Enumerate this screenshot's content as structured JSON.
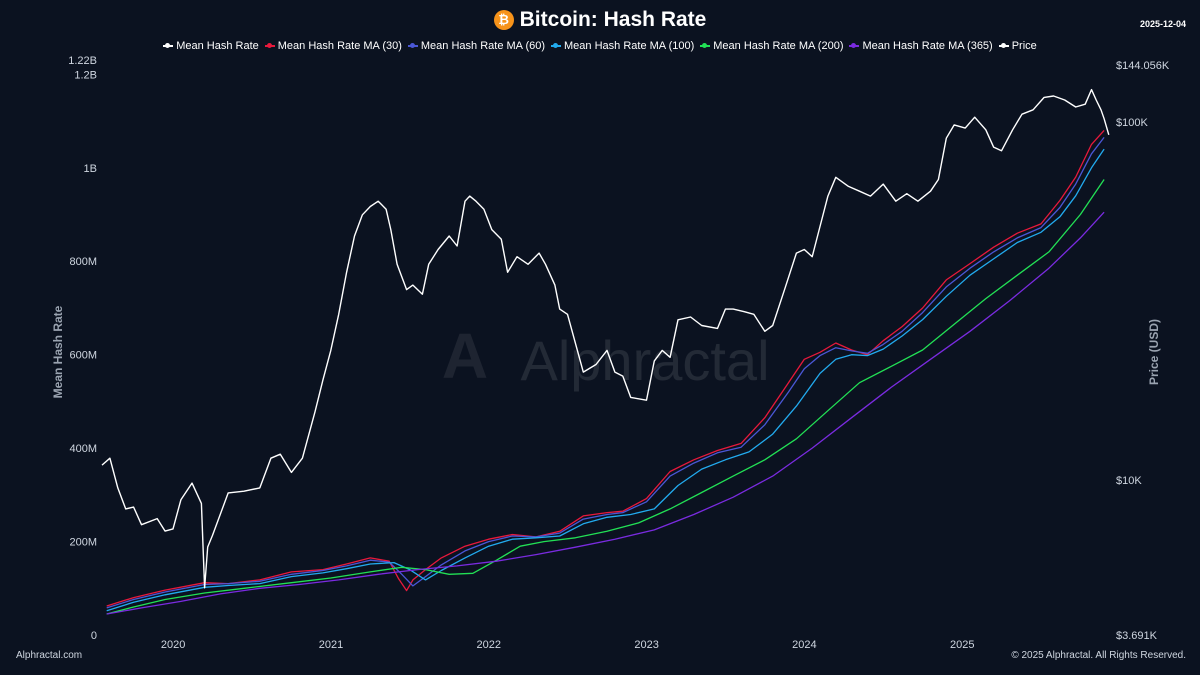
{
  "header": {
    "title": "Bitcoin: Hash Rate",
    "date": "2025-12-04",
    "icon": "bitcoin-icon",
    "icon_glyph": "₿"
  },
  "footer": {
    "left": "Alphractal.com",
    "right": "© 2025 Alphractal. All Rights Reserved."
  },
  "watermark": "Alphractal",
  "chart_data": {
    "type": "line",
    "title": "Bitcoin: Hash Rate",
    "ylabel": "Mean Hash Rate",
    "y2label": "Price (USD)",
    "xlim": [
      2019.55,
      2025.95
    ],
    "ylim": [
      0,
      1220000000
    ],
    "y2lim_log": [
      3691,
      144056
    ],
    "x_ticks": [
      2020,
      2021,
      2022,
      2023,
      2024,
      2025
    ],
    "x_tick_labels": [
      "2020",
      "2021",
      "2022",
      "2023",
      "2024",
      "2025"
    ],
    "y_ticks": [
      {
        "value": 0,
        "label": "0"
      },
      {
        "value": 200000000,
        "label": "200M"
      },
      {
        "value": 400000000,
        "label": "400M"
      },
      {
        "value": 600000000,
        "label": "600M"
      },
      {
        "value": 800000000,
        "label": "800M"
      },
      {
        "value": 1000000000,
        "label": "1B"
      },
      {
        "value": 1200000000,
        "label": "1.2B"
      },
      {
        "value": 1220000000,
        "label": "1.22B"
      }
    ],
    "y2_ticks": [
      {
        "value": 3691,
        "label": "$3.691K"
      },
      {
        "value": 10000,
        "label": "$10K"
      },
      {
        "value": 100000,
        "label": "$100K"
      },
      {
        "value": 144056,
        "label": "$144.056K"
      }
    ],
    "series": [
      {
        "name": "Mean Hash Rate",
        "color": "#ffffff",
        "axis": "left",
        "show_line": false,
        "x": [],
        "values": []
      },
      {
        "name": "Mean Hash Rate MA (30)",
        "color": "#e8193c",
        "axis": "left",
        "x": [
          2019.58,
          2019.75,
          2019.95,
          2020.2,
          2020.35,
          2020.55,
          2020.75,
          2020.95,
          2021.1,
          2021.25,
          2021.37,
          2021.43,
          2021.48,
          2021.52,
          2021.6,
          2021.7,
          2021.85,
          2022.0,
          2022.15,
          2022.3,
          2022.45,
          2022.6,
          2022.75,
          2022.85,
          2023.0,
          2023.15,
          2023.3,
          2023.45,
          2023.6,
          2023.75,
          2023.9,
          2024.0,
          2024.1,
          2024.2,
          2024.3,
          2024.4,
          2024.5,
          2024.62,
          2024.75,
          2024.9,
          2025.05,
          2025.2,
          2025.35,
          2025.5,
          2025.62,
          2025.72,
          2025.82,
          2025.9
        ],
        "values": [
          62000000,
          80000000,
          96000000,
          112000000,
          110000000,
          118000000,
          135000000,
          140000000,
          152000000,
          165000000,
          158000000,
          120000000,
          95000000,
          118000000,
          140000000,
          165000000,
          190000000,
          205000000,
          215000000,
          210000000,
          222000000,
          255000000,
          262000000,
          265000000,
          292000000,
          350000000,
          375000000,
          395000000,
          410000000,
          465000000,
          540000000,
          590000000,
          605000000,
          625000000,
          610000000,
          600000000,
          630000000,
          660000000,
          700000000,
          760000000,
          795000000,
          830000000,
          860000000,
          880000000,
          930000000,
          980000000,
          1050000000,
          1080000000
        ]
      },
      {
        "name": "Mean Hash Rate MA (60)",
        "color": "#4a57d6",
        "axis": "left",
        "x": [
          2019.58,
          2019.75,
          2019.95,
          2020.2,
          2020.35,
          2020.55,
          2020.75,
          2020.95,
          2021.1,
          2021.25,
          2021.37,
          2021.45,
          2021.52,
          2021.6,
          2021.7,
          2021.85,
          2022.0,
          2022.15,
          2022.3,
          2022.45,
          2022.6,
          2022.75,
          2022.85,
          2023.0,
          2023.15,
          2023.3,
          2023.45,
          2023.6,
          2023.75,
          2023.9,
          2024.0,
          2024.1,
          2024.2,
          2024.3,
          2024.4,
          2024.5,
          2024.62,
          2024.75,
          2024.9,
          2025.05,
          2025.2,
          2025.35,
          2025.5,
          2025.62,
          2025.72,
          2025.82,
          2025.9
        ],
        "values": [
          58000000,
          76000000,
          92000000,
          108000000,
          110000000,
          115000000,
          130000000,
          138000000,
          148000000,
          160000000,
          156000000,
          130000000,
          105000000,
          125000000,
          150000000,
          180000000,
          200000000,
          212000000,
          210000000,
          218000000,
          248000000,
          258000000,
          262000000,
          285000000,
          340000000,
          368000000,
          390000000,
          402000000,
          450000000,
          520000000,
          570000000,
          598000000,
          615000000,
          608000000,
          603000000,
          622000000,
          650000000,
          690000000,
          745000000,
          785000000,
          820000000,
          850000000,
          872000000,
          915000000,
          965000000,
          1030000000,
          1065000000
        ]
      },
      {
        "name": "Mean Hash Rate MA (100)",
        "color": "#22aaee",
        "axis": "left",
        "x": [
          2019.58,
          2019.75,
          2019.95,
          2020.2,
          2020.35,
          2020.55,
          2020.75,
          2020.95,
          2021.1,
          2021.25,
          2021.4,
          2021.5,
          2021.6,
          2021.7,
          2021.85,
          2022.0,
          2022.15,
          2022.3,
          2022.45,
          2022.6,
          2022.75,
          2022.9,
          2023.05,
          2023.2,
          2023.35,
          2023.5,
          2023.65,
          2023.8,
          2023.95,
          2024.1,
          2024.2,
          2024.3,
          2024.4,
          2024.5,
          2024.62,
          2024.75,
          2024.9,
          2025.05,
          2025.2,
          2025.35,
          2025.5,
          2025.62,
          2025.72,
          2025.82,
          2025.9
        ],
        "values": [
          52000000,
          70000000,
          86000000,
          102000000,
          106000000,
          110000000,
          125000000,
          133000000,
          142000000,
          152000000,
          155000000,
          140000000,
          118000000,
          138000000,
          165000000,
          190000000,
          205000000,
          208000000,
          212000000,
          238000000,
          252000000,
          258000000,
          270000000,
          320000000,
          355000000,
          375000000,
          392000000,
          430000000,
          490000000,
          560000000,
          590000000,
          600000000,
          598000000,
          612000000,
          640000000,
          675000000,
          725000000,
          770000000,
          805000000,
          840000000,
          862000000,
          895000000,
          940000000,
          1000000000,
          1040000000
        ]
      },
      {
        "name": "Mean Hash Rate MA (200)",
        "color": "#22e055",
        "axis": "left",
        "x": [
          2019.58,
          2019.75,
          2019.95,
          2020.2,
          2020.45,
          2020.75,
          2021.0,
          2021.25,
          2021.45,
          2021.6,
          2021.75,
          2021.9,
          2022.05,
          2022.2,
          2022.35,
          2022.55,
          2022.75,
          2022.95,
          2023.15,
          2023.35,
          2023.55,
          2023.75,
          2023.95,
          2024.15,
          2024.35,
          2024.55,
          2024.75,
          2024.95,
          2025.15,
          2025.35,
          2025.55,
          2025.75,
          2025.9
        ],
        "values": [
          45000000,
          60000000,
          76000000,
          90000000,
          100000000,
          112000000,
          122000000,
          135000000,
          145000000,
          140000000,
          130000000,
          132000000,
          160000000,
          190000000,
          200000000,
          208000000,
          222000000,
          240000000,
          270000000,
          305000000,
          340000000,
          375000000,
          420000000,
          480000000,
          540000000,
          575000000,
          610000000,
          665000000,
          720000000,
          770000000,
          820000000,
          900000000,
          975000000
        ]
      },
      {
        "name": "Mean Hash Rate MA (365)",
        "color": "#7a2be0",
        "axis": "left",
        "x": [
          2019.58,
          2019.8,
          2020.05,
          2020.3,
          2020.55,
          2020.8,
          2021.05,
          2021.3,
          2021.55,
          2021.8,
          2022.05,
          2022.3,
          2022.55,
          2022.8,
          2023.05,
          2023.3,
          2023.55,
          2023.8,
          2024.05,
          2024.3,
          2024.55,
          2024.8,
          2025.05,
          2025.3,
          2025.55,
          2025.75,
          2025.9
        ],
        "values": [
          45000000,
          58000000,
          72000000,
          88000000,
          100000000,
          108000000,
          118000000,
          130000000,
          140000000,
          148000000,
          158000000,
          172000000,
          188000000,
          205000000,
          225000000,
          258000000,
          295000000,
          340000000,
          400000000,
          465000000,
          530000000,
          590000000,
          650000000,
          715000000,
          785000000,
          850000000,
          905000000
        ]
      },
      {
        "name": "Price",
        "color": "#ffffff",
        "axis": "right",
        "x": [
          2019.55,
          2019.6,
          2019.65,
          2019.7,
          2019.75,
          2019.8,
          2019.9,
          2019.95,
          2020.0,
          2020.05,
          2020.12,
          2020.18,
          2020.2,
          2020.22,
          2020.25,
          2020.35,
          2020.45,
          2020.55,
          2020.62,
          2020.68,
          2020.75,
          2020.82,
          2020.9,
          2020.95,
          2021.0,
          2021.05,
          2021.1,
          2021.15,
          2021.2,
          2021.25,
          2021.3,
          2021.35,
          2021.38,
          2021.42,
          2021.48,
          2021.52,
          2021.58,
          2021.62,
          2021.68,
          2021.75,
          2021.8,
          2021.85,
          2021.88,
          2021.92,
          2021.97,
          2022.02,
          2022.08,
          2022.12,
          2022.18,
          2022.25,
          2022.32,
          2022.36,
          2022.42,
          2022.45,
          2022.5,
          2022.6,
          2022.68,
          2022.75,
          2022.8,
          2022.85,
          2022.9,
          2023.0,
          2023.05,
          2023.1,
          2023.15,
          2023.2,
          2023.28,
          2023.35,
          2023.45,
          2023.5,
          2023.55,
          2023.62,
          2023.68,
          2023.75,
          2023.8,
          2023.88,
          2023.95,
          2024.0,
          2024.05,
          2024.1,
          2024.15,
          2024.2,
          2024.28,
          2024.35,
          2024.42,
          2024.5,
          2024.58,
          2024.65,
          2024.72,
          2024.8,
          2024.85,
          2024.9,
          2024.95,
          2025.02,
          2025.08,
          2025.15,
          2025.2,
          2025.25,
          2025.32,
          2025.38,
          2025.45,
          2025.52,
          2025.58,
          2025.65,
          2025.72,
          2025.78,
          2025.82,
          2025.85,
          2025.88,
          2025.9,
          2025.93
        ],
        "values": [
          11000,
          11500,
          9500,
          8300,
          8400,
          7500,
          7800,
          7200,
          7300,
          8800,
          9800,
          8600,
          5000,
          6500,
          7000,
          9200,
          9300,
          9500,
          11500,
          11800,
          10500,
          11500,
          15500,
          19000,
          23000,
          29000,
          38000,
          48000,
          55000,
          58000,
          60000,
          57000,
          50000,
          40000,
          34000,
          35000,
          33000,
          40000,
          44000,
          48000,
          45000,
          60000,
          62000,
          60000,
          57000,
          50000,
          47000,
          38000,
          42000,
          40000,
          43000,
          40000,
          35000,
          30000,
          29000,
          20000,
          21000,
          23000,
          20000,
          19500,
          17000,
          16700,
          21500,
          23000,
          22000,
          28000,
          28500,
          27000,
          26500,
          30000,
          30000,
          29500,
          29000,
          26000,
          27000,
          34500,
          43000,
          44000,
          42000,
          51000,
          62000,
          70000,
          66000,
          64000,
          62000,
          67000,
          60000,
          63000,
          60000,
          64000,
          69000,
          90000,
          98000,
          96000,
          103000,
          95000,
          85000,
          83000,
          95000,
          105000,
          108000,
          117000,
          118000,
          115000,
          110000,
          112000,
          123000,
          115000,
          108000,
          102000,
          92000
        ]
      }
    ]
  }
}
